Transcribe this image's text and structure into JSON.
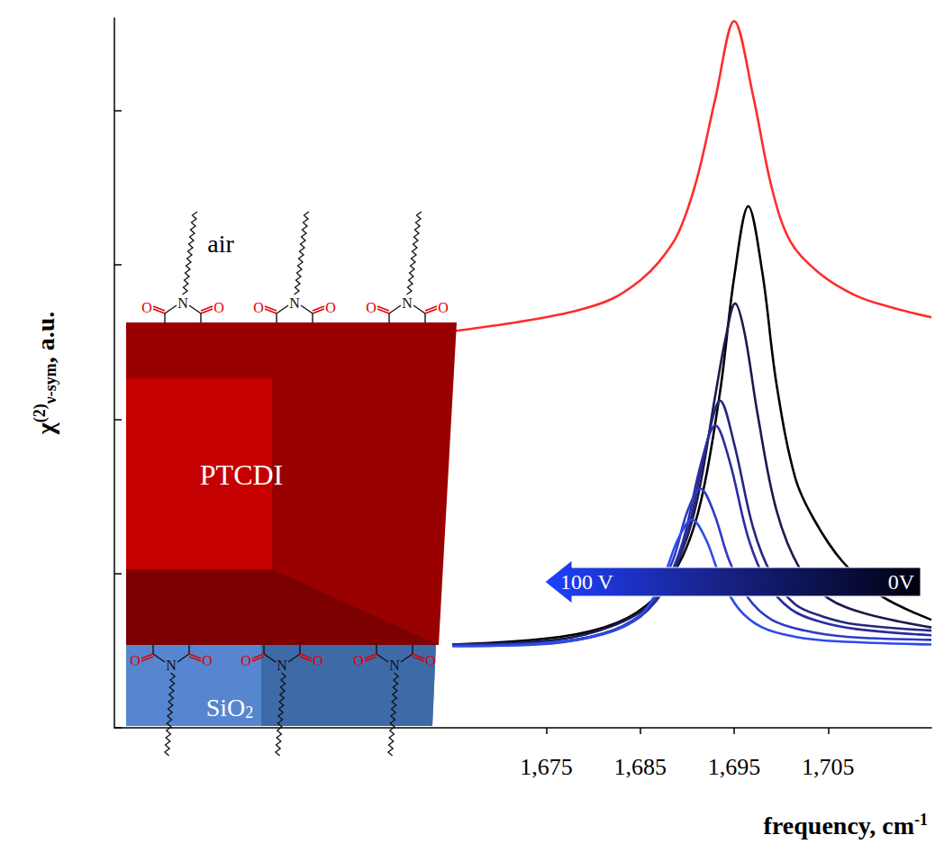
{
  "chart_data": {
    "type": "line",
    "xlabel": {
      "text": "frequency, cm",
      "sup": "-1"
    },
    "ylabel": {
      "text": "χ",
      "sup": "(2)",
      "sub": "ν-sym",
      "tail": ", a.u."
    },
    "xlim": [
      1629,
      1716
    ],
    "xticks": [
      1675,
      1685,
      1695,
      1705
    ],
    "ylim": [
      0,
      4.6
    ],
    "yticks": [
      0,
      1,
      2,
      3,
      4
    ],
    "tick_labels": "x",
    "grid": false,
    "series": [
      {
        "color": "#ff2b2b",
        "x": [
          1665,
          1672,
          1678,
          1682,
          1685,
          1687,
          1689,
          1691,
          1693,
          1695,
          1697,
          1699,
          1701,
          1704,
          1708,
          1712,
          1716
        ],
        "values": [
          2.57,
          2.63,
          2.7,
          2.78,
          2.9,
          3.02,
          3.2,
          3.55,
          4.08,
          4.58,
          4.1,
          3.5,
          3.15,
          2.95,
          2.8,
          2.72,
          2.66
        ]
      },
      {
        "color": "#000000",
        "x": [
          1665,
          1676.5,
          1682.5,
          1686.5,
          1689.5,
          1691.5,
          1693.5,
          1695,
          1696.5,
          1698,
          1699.5,
          1701.5,
          1703.5,
          1706.5,
          1710.5,
          1716
        ],
        "values": [
          0.54,
          0.59,
          0.68,
          0.84,
          1.11,
          1.48,
          2.18,
          2.92,
          3.38,
          2.95,
          2.23,
          1.62,
          1.35,
          1.08,
          0.86,
          0.7
        ]
      },
      {
        "color": "#1b1a4e",
        "x": [
          1665,
          1676,
          1682,
          1686,
          1689,
          1691,
          1693,
          1694.1,
          1695.1,
          1696.1,
          1697.5,
          1699.5,
          1702,
          1705,
          1709,
          1716
        ],
        "values": [
          0.54,
          0.57,
          0.66,
          0.8,
          1.08,
          1.46,
          2.16,
          2.53,
          2.75,
          2.56,
          2.03,
          1.41,
          1.03,
          0.84,
          0.74,
          0.65
        ]
      },
      {
        "color": "#26267f",
        "x": [
          1665,
          1675,
          1681,
          1685,
          1688,
          1690,
          1692,
          1693.5,
          1695,
          1697,
          1699,
          1701.5,
          1704.5,
          1708,
          1716
        ],
        "values": [
          0.54,
          0.55,
          0.61,
          0.72,
          0.94,
          1.26,
          1.82,
          2.12,
          1.84,
          1.3,
          0.99,
          0.8,
          0.72,
          0.67,
          0.63
        ]
      },
      {
        "color": "#2b2ca0",
        "x": [
          1665,
          1675,
          1681,
          1685,
          1687.5,
          1689.5,
          1691.5,
          1693,
          1694.5,
          1696.5,
          1698.5,
          1701,
          1704,
          1708,
          1716
        ],
        "values": [
          0.54,
          0.55,
          0.61,
          0.73,
          0.91,
          1.2,
          1.72,
          1.96,
          1.73,
          1.23,
          0.94,
          0.77,
          0.69,
          0.64,
          0.6
        ]
      },
      {
        "color": "#2d3ac8",
        "x": [
          1665,
          1674,
          1680,
          1684,
          1686.5,
          1688.5,
          1690,
          1691.4,
          1692.8,
          1694.5,
          1696.5,
          1699,
          1702.5,
          1707,
          1716
        ],
        "values": [
          0.53,
          0.54,
          0.59,
          0.68,
          0.84,
          1.09,
          1.4,
          1.55,
          1.4,
          1.08,
          0.84,
          0.7,
          0.63,
          0.59,
          0.57
        ]
      },
      {
        "color": "#2b4af0",
        "x": [
          1665,
          1673,
          1679,
          1683,
          1685.5,
          1687.5,
          1689,
          1690.5,
          1692,
          1693.5,
          1695.5,
          1698,
          1701.5,
          1706,
          1716
        ],
        "values": [
          0.53,
          0.54,
          0.58,
          0.65,
          0.76,
          0.98,
          1.22,
          1.35,
          1.22,
          0.98,
          0.77,
          0.65,
          0.59,
          0.56,
          0.54
        ]
      }
    ],
    "annotations": {
      "arrow": {
        "left_label": "100 V",
        "right_label": "0V"
      },
      "illustration": {
        "air": "air",
        "film": "PTCDI",
        "substrate": {
          "text": "SiO",
          "sub": "2"
        },
        "atoms": {
          "nitrogen": "N",
          "oxygen": "O"
        }
      }
    }
  }
}
